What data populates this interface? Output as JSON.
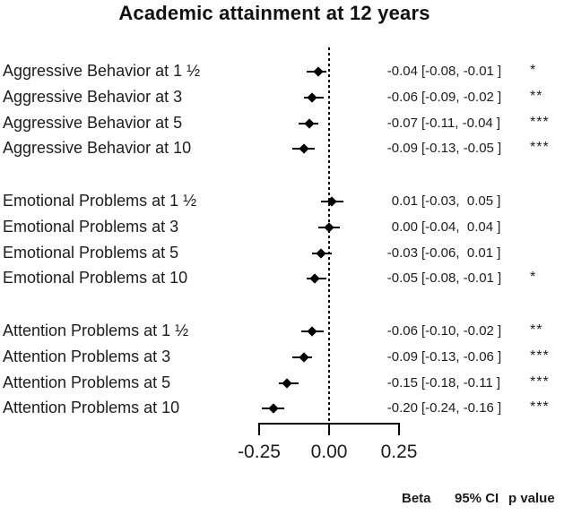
{
  "chart_data": {
    "type": "forest",
    "title": "Academic attainment at 12 years",
    "xlabel": "",
    "xlim": [
      -0.25,
      0.25
    ],
    "reference_value": 0,
    "axis": {
      "ticks": [
        "-0.25",
        "0.00",
        "0.25"
      ],
      "tick_values": [
        -0.25,
        0,
        0.25
      ]
    },
    "columns": {
      "beta": "Beta",
      "ci": "95% CI",
      "p": "p value"
    },
    "groups": [
      "Aggressive Behavior",
      "Emotional Problems",
      "Attention Problems"
    ],
    "rows": [
      {
        "label": "Aggressive Behavior at 1 ½",
        "group": "Aggressive Behavior",
        "beta": -0.04,
        "ci_low": -0.08,
        "ci_high": -0.01,
        "beta_text": "-0.04",
        "ci_text": "[-0.08, -0.01 ]",
        "stars": "*"
      },
      {
        "label": "Aggressive Behavior at 3",
        "group": "Aggressive Behavior",
        "beta": -0.06,
        "ci_low": -0.09,
        "ci_high": -0.02,
        "beta_text": "-0.06",
        "ci_text": "[-0.09, -0.02 ]",
        "stars": "**"
      },
      {
        "label": "Aggressive Behavior at 5",
        "group": "Aggressive Behavior",
        "beta": -0.07,
        "ci_low": -0.11,
        "ci_high": -0.04,
        "beta_text": "-0.07",
        "ci_text": "[-0.11, -0.04 ]",
        "stars": "***"
      },
      {
        "label": "Aggressive Behavior at 10",
        "group": "Aggressive Behavior",
        "beta": -0.09,
        "ci_low": -0.13,
        "ci_high": -0.05,
        "beta_text": "-0.09",
        "ci_text": "[-0.13, -0.05 ]",
        "stars": "***"
      },
      {
        "label": "Emotional Problems at 1 ½",
        "group": "Emotional Problems",
        "beta": 0.01,
        "ci_low": -0.03,
        "ci_high": 0.05,
        "beta_text": "0.01",
        "ci_text": "[-0.03,  0.05 ]",
        "stars": ""
      },
      {
        "label": "Emotional Problems at 3",
        "group": "Emotional Problems",
        "beta": 0.0,
        "ci_low": -0.04,
        "ci_high": 0.04,
        "beta_text": "0.00",
        "ci_text": "[-0.04,  0.04 ]",
        "stars": ""
      },
      {
        "label": "Emotional Problems at 5",
        "group": "Emotional Problems",
        "beta": -0.03,
        "ci_low": -0.06,
        "ci_high": 0.01,
        "beta_text": "-0.03",
        "ci_text": "[-0.06,  0.01 ]",
        "stars": ""
      },
      {
        "label": "Emotional Problems at 10",
        "group": "Emotional Problems",
        "beta": -0.05,
        "ci_low": -0.08,
        "ci_high": -0.01,
        "beta_text": "-0.05",
        "ci_text": "[-0.08, -0.01 ]",
        "stars": "*"
      },
      {
        "label": "Attention Problems at 1 ½",
        "group": "Attention Problems",
        "beta": -0.06,
        "ci_low": -0.1,
        "ci_high": -0.02,
        "beta_text": "-0.06",
        "ci_text": "[-0.10, -0.02 ]",
        "stars": "**"
      },
      {
        "label": "Attention Problems at 3",
        "group": "Attention Problems",
        "beta": -0.09,
        "ci_low": -0.13,
        "ci_high": -0.06,
        "beta_text": "-0.09",
        "ci_text": "[-0.13, -0.06 ]",
        "stars": "***"
      },
      {
        "label": "Attention Problems at 5",
        "group": "Attention Problems",
        "beta": -0.15,
        "ci_low": -0.18,
        "ci_high": -0.11,
        "beta_text": "-0.15",
        "ci_text": "[-0.18, -0.11 ]",
        "stars": "***"
      },
      {
        "label": "Attention Problems at 10",
        "group": "Attention Problems",
        "beta": -0.2,
        "ci_low": -0.24,
        "ci_high": -0.16,
        "beta_text": "-0.20",
        "ci_text": "[-0.24, -0.16 ]",
        "stars": "***"
      }
    ],
    "colors": {
      "marker": "#000000",
      "text": "#1c1c1c",
      "background": "#ffffff"
    },
    "legend_position": "bottom-right",
    "grid": false
  }
}
